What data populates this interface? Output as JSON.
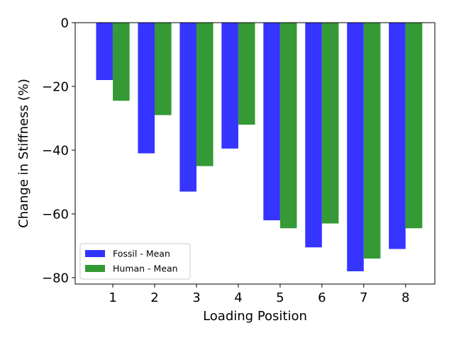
{
  "chart_data": {
    "type": "bar",
    "title": "",
    "xlabel": "Loading Position",
    "ylabel": "Change in Stiffness (%)",
    "categories": [
      "1",
      "2",
      "3",
      "4",
      "5",
      "6",
      "7",
      "8"
    ],
    "series": [
      {
        "name": "Fossil - Mean",
        "color": "#3333ff",
        "values": [
          -18,
          -41,
          -53,
          -39.5,
          -62,
          -70.5,
          -78,
          -71
        ]
      },
      {
        "name": "Human - Mean",
        "color": "#339933",
        "values": [
          -24.5,
          -29,
          -45,
          -32,
          -64.5,
          -63,
          -74,
          -64.5
        ]
      }
    ],
    "ylim": [
      -82,
      0
    ],
    "yticks": [
      0,
      -20,
      -40,
      -60,
      -80
    ],
    "ytick_labels": [
      "0",
      "−20",
      "−40",
      "−60",
      "−80"
    ],
    "grid": false,
    "legend": "lower-left"
  }
}
